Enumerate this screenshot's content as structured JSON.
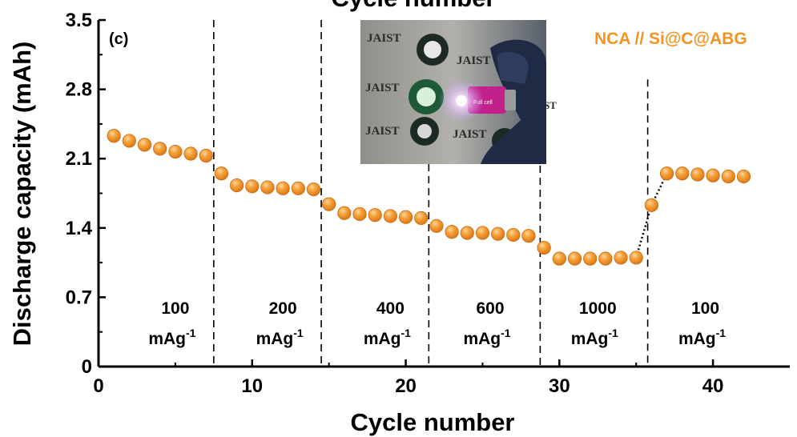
{
  "chart_data": {
    "type": "scatter",
    "panel_label": "(c)",
    "title_cut": "Cycle number",
    "xlabel": "Cycle number",
    "ylabel": "Discharge capacity (mAh)",
    "xlim": [
      0,
      45
    ],
    "ylim": [
      0,
      3.5
    ],
    "x_ticks": [
      0,
      10,
      20,
      30,
      40
    ],
    "y_ticks": [
      "0",
      "0.7",
      "1.4",
      "2.1",
      "2.8",
      "3.5"
    ],
    "y_tick_values": [
      0,
      0.7,
      1.4,
      2.1,
      2.8,
      3.5
    ],
    "legend": {
      "text": "NCA // Si@C@ABG",
      "placement": "top-right"
    },
    "colors": {
      "marker": "#f39422",
      "marker_highlight": "#fbd59e",
      "marker_edge": "#c86a10",
      "legend": "#f39422"
    },
    "series": [
      {
        "name": "NCA // Si@C@ABG",
        "x": [
          1,
          2,
          3,
          4,
          5,
          6,
          7,
          8,
          9,
          10,
          11,
          12,
          13,
          14,
          15,
          16,
          17,
          18,
          19,
          20,
          21,
          22,
          23,
          24,
          25,
          26,
          27,
          28,
          29,
          30,
          31,
          32,
          33,
          34,
          35,
          36,
          37,
          38,
          39,
          40,
          41,
          42
        ],
        "y": [
          2.33,
          2.28,
          2.24,
          2.2,
          2.17,
          2.15,
          2.13,
          1.95,
          1.83,
          1.82,
          1.81,
          1.8,
          1.8,
          1.79,
          1.64,
          1.55,
          1.54,
          1.53,
          1.52,
          1.51,
          1.5,
          1.42,
          1.36,
          1.35,
          1.35,
          1.34,
          1.33,
          1.32,
          1.2,
          1.09,
          1.09,
          1.09,
          1.09,
          1.1,
          1.1,
          1.63,
          1.95,
          1.95,
          1.94,
          1.93,
          1.92,
          1.92
        ]
      }
    ],
    "connectors": [
      {
        "from_x": 35,
        "to_x": 36,
        "style": "dotted"
      },
      {
        "from_x": 36,
        "to_x": 37,
        "style": "dotted"
      }
    ],
    "dividers": [
      {
        "x": 7.5,
        "y_top": 3.5
      },
      {
        "x": 14.5,
        "y_top": 3.5
      },
      {
        "x": 21.5,
        "y_top": 3.5
      },
      {
        "x": 28.75,
        "y_top": 2.15
      },
      {
        "x": 35.75,
        "y_top": 2.9
      }
    ],
    "rate_labels": [
      {
        "value": "100",
        "unit": "mAg",
        "sup": "-1",
        "x": 5
      },
      {
        "value": "200",
        "unit": "mAg",
        "sup": "-1",
        "x": 12
      },
      {
        "value": "400",
        "unit": "mAg",
        "sup": "-1",
        "x": 19
      },
      {
        "value": "600",
        "unit": "mAg",
        "sup": "-1",
        "x": 25.5
      },
      {
        "value": "1000",
        "unit": "mAg",
        "sup": "-1",
        "x": 32.5
      },
      {
        "value": "100",
        "unit": "mAg",
        "sup": "-1",
        "x": 39.5
      }
    ],
    "inset": {
      "description": "photo of full coin cell lighting an LED",
      "logo_text": "JAIST",
      "cell_text": "Full cell"
    }
  }
}
